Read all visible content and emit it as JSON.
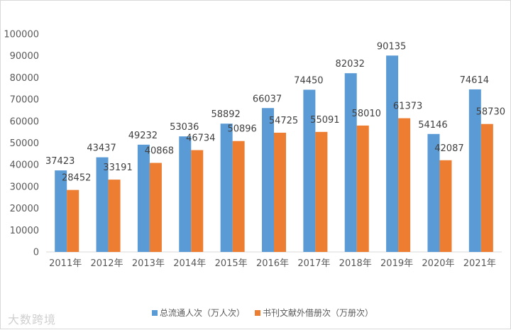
{
  "watermark": "大数跨境",
  "chart_data": {
    "type": "bar",
    "categories": [
      "2011年",
      "2012年",
      "2013年",
      "2014年",
      "2015年",
      "2016年",
      "2017年",
      "2018年",
      "2019年",
      "2020年",
      "2021年"
    ],
    "series": [
      {
        "name": "总流通人次（万人次）",
        "color": "#5b9bd5",
        "values": [
          37423,
          43437,
          49232,
          53036,
          58892,
          66037,
          74450,
          82032,
          90135,
          54146,
          74614
        ]
      },
      {
        "name": "书刊文献外借册次（万册次）",
        "color": "#ed7d31",
        "values": [
          28452,
          33191,
          40868,
          46734,
          50896,
          54725,
          55091,
          58010,
          61373,
          42087,
          58730
        ]
      }
    ],
    "ylim": [
      0,
      100000
    ],
    "yticks": [
      0,
      10000,
      20000,
      30000,
      40000,
      50000,
      60000,
      70000,
      80000,
      90000,
      100000
    ],
    "legend_position": "bottom-right",
    "grid": false
  }
}
